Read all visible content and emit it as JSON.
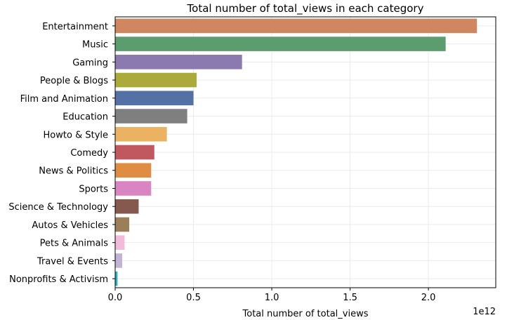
{
  "chart_data": {
    "type": "bar",
    "orientation": "horizontal",
    "title": "Total number of total_views in each category",
    "xlabel": "Total number of total_views",
    "ylabel": "",
    "x_scale_label": "1e12",
    "x_unit_multiplier": 1000000000000,
    "xlim": [
      0,
      2.43
    ],
    "xticks": [
      0.0,
      0.5,
      1.0,
      1.5,
      2.0
    ],
    "xtick_labels": [
      "0.0",
      "0.5",
      "1.0",
      "1.5",
      "2.0"
    ],
    "grid": true,
    "categories": [
      "Entertainment",
      "Music",
      "Gaming",
      "People & Blogs",
      "Film and Animation",
      "Education",
      "Howto & Style",
      "Comedy",
      "News & Politics",
      "Sports",
      "Science & Technology",
      "Autos & Vehicles",
      "Pets & Animals",
      "Travel & Events",
      "Nonprofits & Activism"
    ],
    "values": [
      2.31,
      2.11,
      0.81,
      0.52,
      0.5,
      0.46,
      0.33,
      0.25,
      0.23,
      0.23,
      0.15,
      0.09,
      0.06,
      0.045,
      0.015
    ],
    "colors": [
      "#d0875f",
      "#5b9d6e",
      "#8a7aaf",
      "#abab3b",
      "#5471a5",
      "#7f7f7f",
      "#ebb262",
      "#c15860",
      "#de8d42",
      "#d985c2",
      "#86594f",
      "#9b7f58",
      "#f4bada",
      "#c2b2d4",
      "#22b1c5"
    ]
  }
}
